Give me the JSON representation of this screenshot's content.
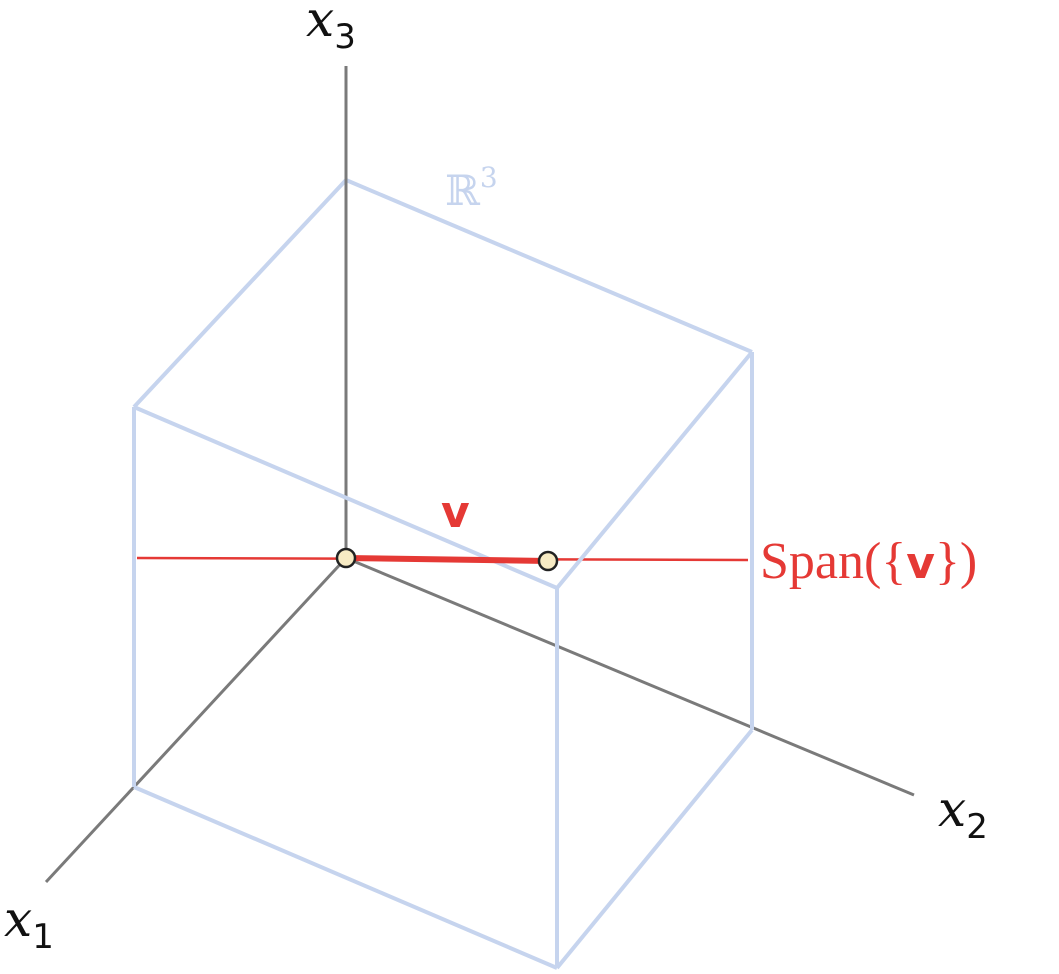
{
  "space_label": {
    "base": "ℝ",
    "exponent": "3"
  },
  "axes": {
    "x1": {
      "var": "x",
      "sub": "1"
    },
    "x2": {
      "var": "x",
      "sub": "2"
    },
    "x3": {
      "var": "x",
      "sub": "3"
    }
  },
  "vector_label": "v",
  "span_label": {
    "prefix": "Span({",
    "bold": "v",
    "suffix": "})"
  },
  "colors": {
    "axis": "#7a7a7a",
    "box": "#c6d4ee",
    "accent": "#e53935",
    "point_fill": "#f7ebc4"
  }
}
